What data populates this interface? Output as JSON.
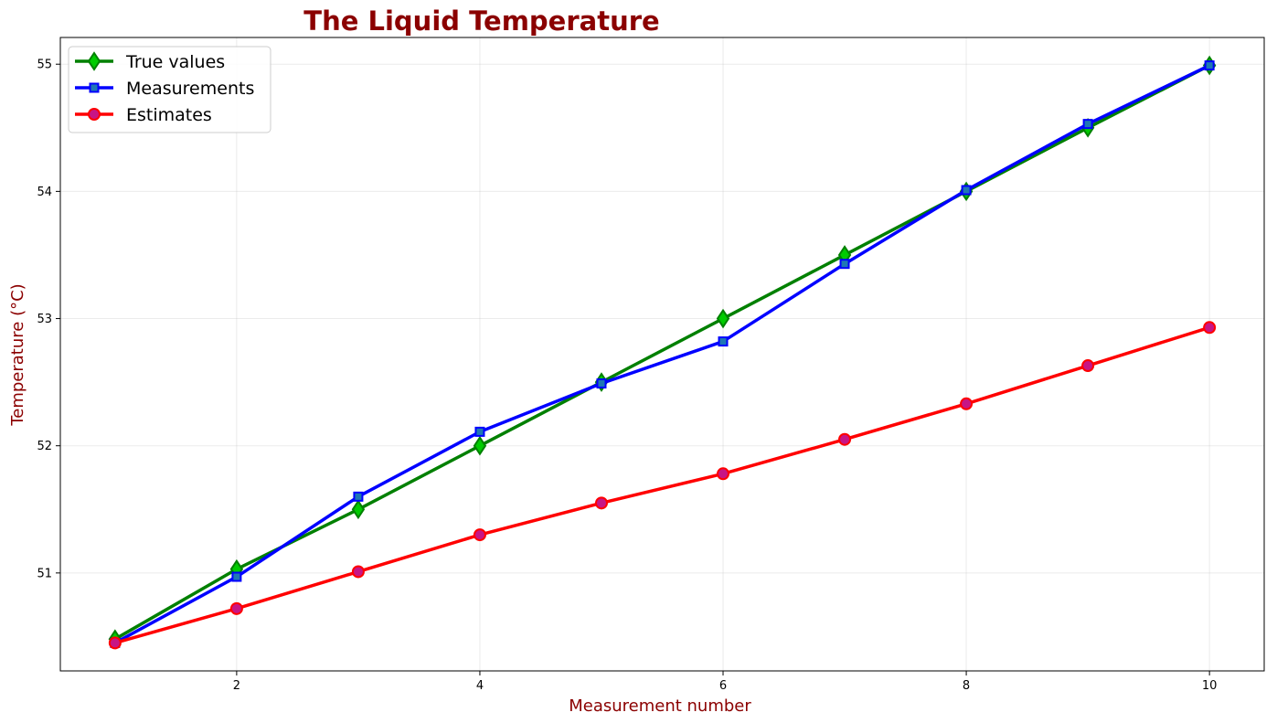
{
  "chart_data": {
    "type": "line",
    "title": "The Liquid  Temperature",
    "xlabel": "Measurement number",
    "ylabel": "Temperature (°C)",
    "x": [
      1,
      2,
      3,
      4,
      5,
      6,
      7,
      8,
      9,
      10
    ],
    "xlim": [
      0.55,
      10.45
    ],
    "ylim": [
      50.23,
      55.21
    ],
    "xticks": [
      2,
      4,
      6,
      8,
      10
    ],
    "yticks": [
      51,
      52,
      53,
      54,
      55
    ],
    "grid": true,
    "legend_position": "top-left",
    "series": [
      {
        "name": "True values",
        "values": [
          50.48,
          51.03,
          51.5,
          52.0,
          52.5,
          53.0,
          53.5,
          54.0,
          54.5,
          54.99
        ],
        "line_color": "#008000",
        "marker": "diamond",
        "marker_face": "#00cc00",
        "marker_edge": "#008000"
      },
      {
        "name": "Measurements",
        "values": [
          50.45,
          50.97,
          51.6,
          52.11,
          52.49,
          52.82,
          53.43,
          54.01,
          54.53,
          54.99
        ],
        "line_color": "#0000ff",
        "marker": "square",
        "marker_face": "#1f77b4",
        "marker_edge": "#0000ff"
      },
      {
        "name": "Estimates",
        "values": [
          50.45,
          50.72,
          51.01,
          51.3,
          51.55,
          51.78,
          52.05,
          52.33,
          52.63,
          52.93
        ],
        "line_color": "#ff0000",
        "marker": "circle",
        "marker_face": "#c71585",
        "marker_edge": "#ff0000"
      }
    ]
  }
}
